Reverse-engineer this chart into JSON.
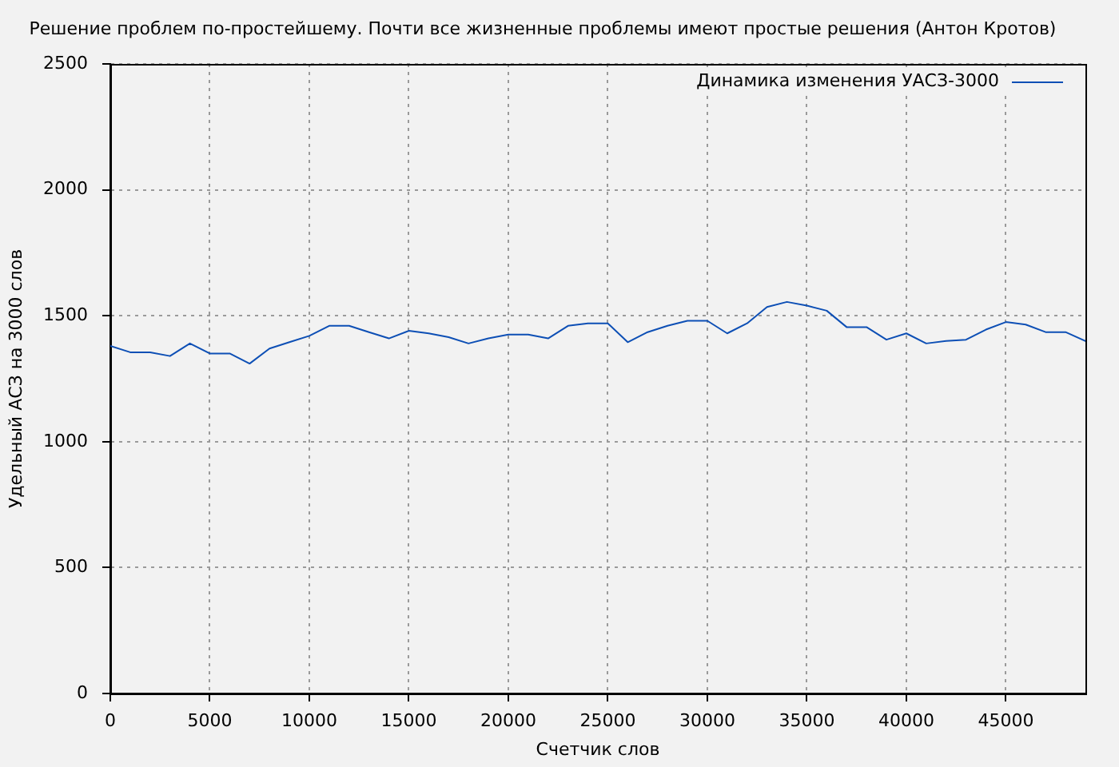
{
  "chart_data": {
    "type": "line",
    "title": "Решение проблем по-простейшему. Почти все жизненные проблемы имеют простые решения (Антон Кротов)",
    "xlabel": "Счетчик слов",
    "ylabel": "Удельный АСЗ на 3000 слов",
    "x": [
      0,
      1000,
      2000,
      3000,
      4000,
      5000,
      6000,
      7000,
      8000,
      9000,
      10000,
      11000,
      12000,
      13000,
      14000,
      15000,
      16000,
      17000,
      18000,
      19000,
      20000,
      21000,
      22000,
      23000,
      24000,
      25000,
      26000,
      27000,
      28000,
      29000,
      30000,
      31000,
      32000,
      33000,
      34000,
      35000,
      36000,
      37000,
      38000,
      39000,
      40000,
      41000,
      42000,
      43000,
      44000,
      45000,
      46000,
      47000,
      48000,
      49000
    ],
    "series": [
      {
        "name": "Динамика изменения УАСЗ-3000",
        "color": "#0d4fb5",
        "values": [
          1380,
          1355,
          1355,
          1340,
          1390,
          1350,
          1350,
          1310,
          1370,
          1395,
          1420,
          1460,
          1460,
          1435,
          1410,
          1440,
          1430,
          1415,
          1390,
          1410,
          1425,
          1425,
          1410,
          1460,
          1470,
          1470,
          1395,
          1435,
          1460,
          1480,
          1480,
          1430,
          1470,
          1535,
          1555,
          1540,
          1520,
          1455,
          1455,
          1405,
          1430,
          1390,
          1400,
          1405,
          1445,
          1475,
          1465,
          1435,
          1435,
          1400
        ]
      }
    ],
    "xlim": [
      0,
      49000
    ],
    "ylim": [
      0,
      2500
    ],
    "xticks": [
      0,
      5000,
      10000,
      15000,
      20000,
      25000,
      30000,
      35000,
      40000,
      45000
    ],
    "yticks": [
      0,
      500,
      1000,
      1500,
      2000,
      2500
    ],
    "grid": true,
    "legend": "top right",
    "marker": "none"
  }
}
